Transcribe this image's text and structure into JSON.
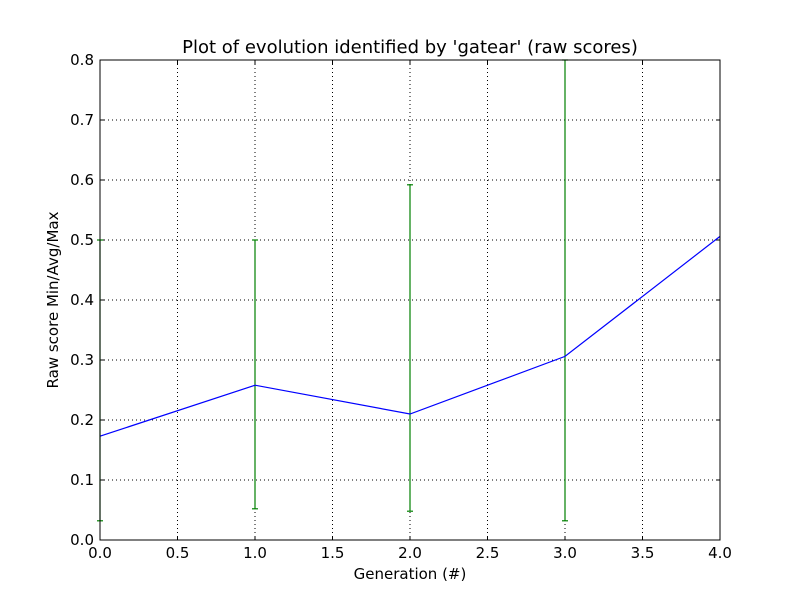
{
  "chart_data": {
    "type": "line",
    "title": "Plot of evolution identified by 'gatear' (raw scores)",
    "xlabel": "Generation (#)",
    "ylabel": "Raw score Min/Avg/Max",
    "xlim": [
      0,
      4
    ],
    "ylim": [
      0,
      0.8
    ],
    "x_ticks": [
      "0.0",
      "0.5",
      "1.0",
      "1.5",
      "2.0",
      "2.5",
      "3.0",
      "3.5",
      "4.0"
    ],
    "y_ticks": [
      "0.0",
      "0.1",
      "0.2",
      "0.3",
      "0.4",
      "0.5",
      "0.6",
      "0.7",
      "0.8"
    ],
    "grid": true,
    "series": [
      {
        "x": [
          0,
          1,
          2,
          3,
          4
        ],
        "avg": [
          0.173,
          0.258,
          0.21,
          0.306,
          0.506
        ],
        "min": [
          0.032,
          0.052,
          0.048,
          0.032,
          null
        ],
        "max": [
          0.5,
          0.5,
          0.592,
          0.8,
          null
        ],
        "line_color": "#0000ff",
        "errorbar_color": "#008000"
      }
    ]
  }
}
